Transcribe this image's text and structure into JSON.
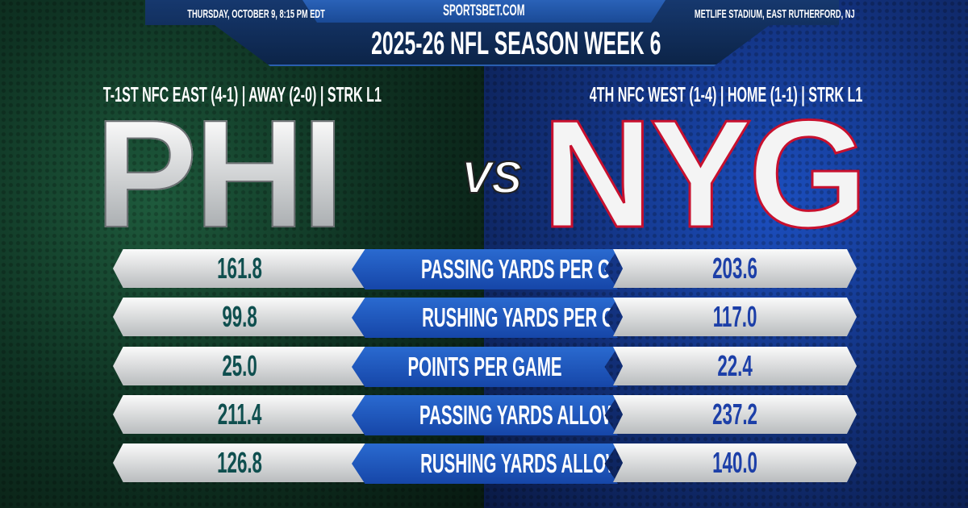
{
  "header": {
    "date": "THURSDAY, OCTOBER 9, 8:15 PM EDT",
    "site": "SPORTSBET.COM",
    "venue": "METLIFE STADIUM, EAST RUTHERFORD, NJ",
    "title": "2025-26 NFL SEASON WEEK 6"
  },
  "away": {
    "abbr": "PHI",
    "record": "T-1ST NFC EAST (4-1) | AWAY (2-0) | STRK L1",
    "color": "#0f4f4f"
  },
  "home": {
    "abbr": "NYG",
    "record": "4TH NFC WEST (1-4) | HOME (1-1) | STRK L1",
    "color": "#1c3fa8"
  },
  "vs": "VS",
  "stats": [
    {
      "label": "PASSING YARDS PER GAME",
      "away": "161.8",
      "home": "203.6"
    },
    {
      "label": "RUSHING YARDS PER GAME",
      "away": "99.8",
      "home": "117.0"
    },
    {
      "label": "POINTS PER GAME",
      "away": "25.0",
      "home": "22.4"
    },
    {
      "label": "PASSING YARDS ALLOWED",
      "away": "211.4",
      "home": "237.2"
    },
    {
      "label": "RUSHING YARDS ALLOWED",
      "away": "126.8",
      "home": "140.0"
    }
  ]
}
